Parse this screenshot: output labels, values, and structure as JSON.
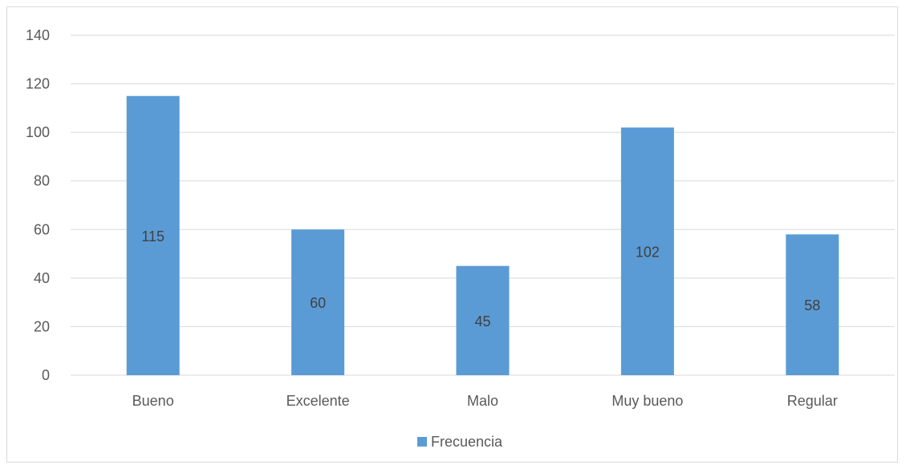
{
  "chart_data": {
    "type": "bar",
    "categories": [
      "Bueno",
      "Excelente",
      "Malo",
      "Muy bueno",
      "Regular"
    ],
    "series": [
      {
        "name": "Frecuencia",
        "values": [
          115,
          60,
          45,
          102,
          58
        ],
        "color": "#5b9bd5"
      }
    ],
    "data_labels": [
      "115",
      "60",
      "45",
      "102",
      "58"
    ],
    "y_ticks": [
      "0",
      "20",
      "40",
      "60",
      "80",
      "100",
      "120",
      "140"
    ],
    "ylim": [
      0,
      140
    ],
    "grid": true,
    "legend": "bottom",
    "gridline_color": "#d9d9d9",
    "axis_color": "#d9d9d9"
  }
}
